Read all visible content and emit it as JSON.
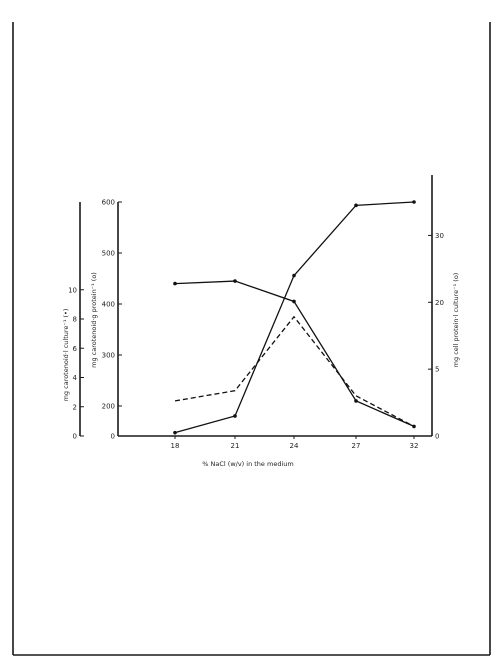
{
  "chart_data": {
    "type": "line",
    "x": [
      18,
      21,
      24,
      27,
      32
    ],
    "x_tick_labels": [
      "18",
      "21",
      "24",
      "27",
      "32"
    ],
    "xlabel": "% NaCl (w/v) in the medium",
    "y_axes": [
      {
        "id": "culture",
        "label": "mg carotenoid·l culture⁻¹ (•)",
        "ticks": [
          "0",
          "2",
          "4",
          "6",
          "8",
          "10"
        ],
        "ylim": [
          0,
          16
        ]
      },
      {
        "id": "protein_g",
        "label": "mg carotenoid·g protein⁻¹ (o)",
        "ticks": [
          "0",
          "200",
          "300",
          "400",
          "500",
          "600"
        ],
        "ylim": [
          100,
          600
        ]
      },
      {
        "id": "cell_protein",
        "label": "mg cell protein·l culture⁻¹ (o)",
        "ticks": [
          "0",
          "5",
          "20",
          "30"
        ],
        "ylim": [
          0,
          35
        ]
      }
    ],
    "series": [
      {
        "axis": "protein_g",
        "style": "solid",
        "values": [
          440,
          445,
          405,
          210,
          160
        ]
      },
      {
        "axis": "cell_protein",
        "style": "solid",
        "values": [
          0.5,
          3,
          24,
          34.5,
          35
        ]
      },
      {
        "axis": "protein_g",
        "style": "dashed",
        "values": [
          210,
          230,
          375,
          220,
          160
        ]
      }
    ],
    "grid": false
  }
}
